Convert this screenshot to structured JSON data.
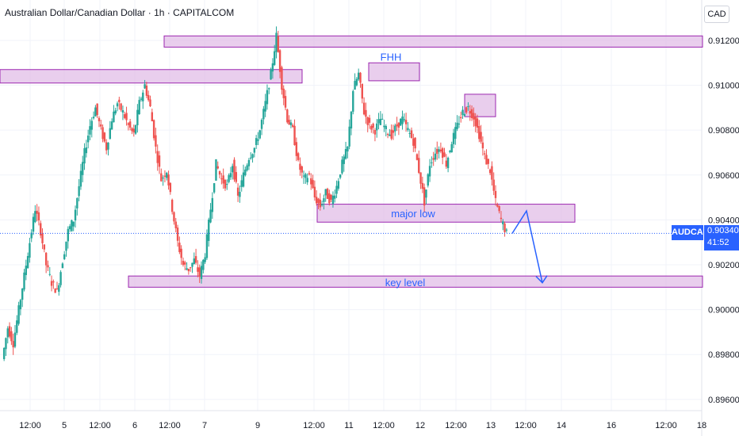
{
  "header": {
    "title": "Australian Dollar/Canadian Dollar · 1h · CAPITALCOM",
    "currency": "CAD"
  },
  "price_tag": {
    "symbol": "AUDCAD",
    "price": "0.90340",
    "countdown": "41:52"
  },
  "colors": {
    "up": "#26a69a",
    "down": "#ef5350",
    "zone_fill": "#e1bee7",
    "zone_stroke": "#9c27b0",
    "annotation": "#2962ff",
    "grid": "#f0f3fa",
    "axis_text": "#131722"
  },
  "chart_data": {
    "type": "candlestick",
    "title": "Australian Dollar/Canadian Dollar · 1h · CAPITALCOM",
    "x_ticks": [
      "12:00",
      "5",
      "12:00",
      "6",
      "12:00",
      "7",
      "9",
      "12:00",
      "11",
      "12:00",
      "12",
      "12:00",
      "13",
      "12:00",
      "14",
      "16",
      "12:00",
      "18"
    ],
    "y_ticks": [
      "0.91200",
      "0.91000",
      "0.90800",
      "0.90600",
      "0.90400",
      "0.90200",
      "0.90000",
      "0.89800",
      "0.89600"
    ],
    "ylim": [
      0.8955,
      0.9138
    ],
    "last_price": 0.9034,
    "grid": true,
    "zones": [
      {
        "y_top": 0.9122,
        "y_bottom": 0.9117
      },
      {
        "y_top": 0.9107,
        "y_bottom": 0.9101
      },
      {
        "label": "FHH",
        "y_top": 0.911,
        "y_bottom": 0.9102
      },
      {
        "y_top": 0.9096,
        "y_bottom": 0.9086
      },
      {
        "label": "major low",
        "y_top": 0.9047,
        "y_bottom": 0.9039
      },
      {
        "label": "key level",
        "y_top": 0.9015,
        "y_bottom": 0.901
      }
    ],
    "projection": [
      0.9034,
      0.9044,
      0.9012
    ],
    "candle_path": [
      0.8978,
      0.8992,
      0.8985,
      0.9,
      0.9015,
      0.903,
      0.9045,
      0.9035,
      0.902,
      0.9012,
      0.9008,
      0.9022,
      0.9035,
      0.904,
      0.9055,
      0.907,
      0.9082,
      0.909,
      0.908,
      0.9072,
      0.9085,
      0.9092,
      0.9088,
      0.9082,
      0.9078,
      0.9092,
      0.91,
      0.909,
      0.9072,
      0.9058,
      0.9062,
      0.9045,
      0.903,
      0.902,
      0.9018,
      0.9022,
      0.9015,
      0.9025,
      0.9045,
      0.9065,
      0.9058,
      0.9055,
      0.9065,
      0.905,
      0.906,
      0.9068,
      0.9072,
      0.908,
      0.9092,
      0.9105,
      0.9122,
      0.91,
      0.9085,
      0.908,
      0.9065,
      0.9058,
      0.906,
      0.905,
      0.9046,
      0.9052,
      0.9048,
      0.9055,
      0.9065,
      0.9072,
      0.9098,
      0.9105,
      0.9088,
      0.9082,
      0.908,
      0.9085,
      0.908,
      0.9078,
      0.9082,
      0.9085,
      0.908,
      0.9075,
      0.9062,
      0.9048,
      0.9065,
      0.907,
      0.9072,
      0.9065,
      0.9075,
      0.9082,
      0.9088,
      0.909,
      0.9086,
      0.9078,
      0.9068,
      0.9062,
      0.9048,
      0.904,
      0.9034
    ]
  }
}
